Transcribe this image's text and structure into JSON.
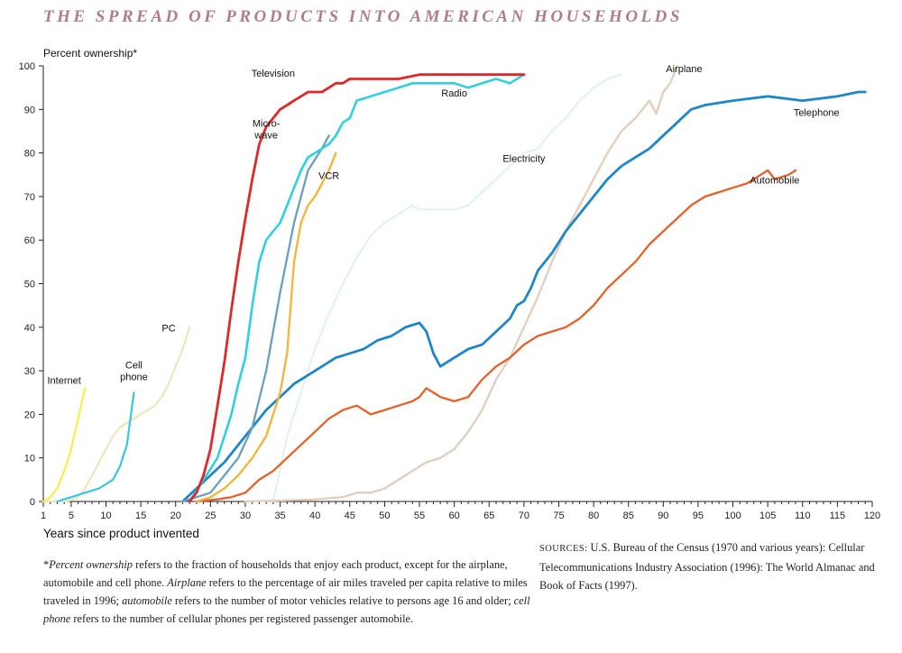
{
  "colors": {
    "title": "#b07c8f",
    "Television": "#e02828",
    "Radio": "#31cfe0",
    "Microwave": "#6a9fbd",
    "VCR": "#f2b535",
    "Electricity": "#dff2f0",
    "Airplane": "#e3cdbd",
    "Telephone": "#1f86c8",
    "Automobile": "#e2622a",
    "PC": "#efe4b8",
    "Internet": "#f8ee3a",
    "Cell phone": "#34c9de"
  },
  "title": "THE SPREAD OF PRODUCTS INTO AMERICAN HOUSEHOLDS",
  "chart_data": {
    "type": "line",
    "ylabel": "Percent ownership*",
    "xlabel": "Years since product invented",
    "xlim": [
      1,
      120
    ],
    "ylim": [
      0,
      100
    ],
    "xticks": [
      1,
      5,
      10,
      15,
      20,
      25,
      30,
      35,
      40,
      45,
      50,
      55,
      60,
      65,
      70,
      75,
      80,
      85,
      90,
      95,
      100,
      105,
      110,
      115,
      120
    ],
    "yticks": [
      0,
      10,
      20,
      30,
      40,
      50,
      60,
      70,
      80,
      90,
      100
    ],
    "grid": false,
    "series": [
      {
        "name": "Electricity",
        "label": "Electricity",
        "label_at": [
          70,
          78
        ],
        "width": 2,
        "x": [
          34,
          36,
          38,
          40,
          42,
          44,
          46,
          48,
          50,
          52,
          54,
          55,
          56,
          58,
          60,
          62,
          64,
          66,
          68,
          70,
          72,
          74,
          76,
          78,
          80,
          82,
          84
        ],
        "y": [
          0,
          15,
          25,
          35,
          43,
          50,
          56,
          61,
          64,
          66,
          68,
          67,
          67,
          67,
          67,
          68,
          71,
          74,
          77,
          80,
          81,
          85,
          88,
          92,
          95,
          97,
          98
        ]
      },
      {
        "name": "Airplane",
        "label": "Airplane",
        "label_at": [
          93,
          98.5
        ],
        "width": 2.3,
        "x": [
          30,
          35,
          40,
          44,
          46,
          48,
          50,
          52,
          54,
          56,
          58,
          60,
          62,
          64,
          66,
          68,
          70,
          72,
          74,
          76,
          78,
          80,
          82,
          84,
          86,
          88,
          89,
          90,
          91,
          92
        ],
        "y": [
          0,
          0.2,
          0.5,
          1,
          2,
          2,
          3,
          5,
          7,
          9,
          10,
          12,
          16,
          21,
          28,
          33,
          40,
          47,
          55,
          62,
          68,
          74,
          80,
          85,
          88,
          92,
          89,
          94,
          96,
          100
        ]
      },
      {
        "name": "Automobile",
        "label": "Automobile",
        "label_at": [
          106,
          73
        ],
        "width": 2.3,
        "x": [
          23,
          26,
          28,
          30,
          32,
          34,
          36,
          38,
          40,
          42,
          44,
          46,
          48,
          50,
          52,
          54,
          55,
          56,
          58,
          60,
          62,
          64,
          66,
          68,
          70,
          72,
          74,
          76,
          78,
          80,
          82,
          84,
          86,
          88,
          90,
          92,
          94,
          96,
          98,
          100,
          102,
          104,
          105,
          106,
          108,
          109
        ],
        "y": [
          0,
          0.5,
          1,
          2,
          5,
          7,
          10,
          13,
          16,
          19,
          21,
          22,
          20,
          21,
          22,
          23,
          24,
          26,
          24,
          23,
          24,
          28,
          31,
          33,
          36,
          38,
          39,
          40,
          42,
          45,
          49,
          52,
          55,
          59,
          62,
          65,
          68,
          70,
          71,
          72,
          73,
          75,
          76,
          74,
          75,
          76
        ]
      },
      {
        "name": "Telephone",
        "label": "Telephone",
        "label_at": [
          112,
          88.5
        ],
        "width": 2.8,
        "x": [
          21,
          23,
          25,
          27,
          29,
          31,
          33,
          35,
          37,
          39,
          41,
          43,
          45,
          47,
          49,
          51,
          53,
          55,
          56,
          57,
          58,
          60,
          62,
          64,
          66,
          68,
          69,
          70,
          71,
          72,
          74,
          76,
          78,
          80,
          82,
          84,
          86,
          88,
          90,
          92,
          94,
          96,
          100,
          105,
          110,
          115,
          118,
          119
        ],
        "y": [
          0,
          3,
          6,
          9,
          13,
          17,
          21,
          24,
          27,
          29,
          31,
          33,
          34,
          35,
          37,
          38,
          40,
          41,
          39,
          34,
          31,
          33,
          35,
          36,
          39,
          42,
          45,
          46,
          49,
          53,
          57,
          62,
          66,
          70,
          74,
          77,
          79,
          81,
          84,
          87,
          90,
          91,
          92,
          93,
          92,
          93,
          94,
          94
        ]
      },
      {
        "name": "PC",
        "label": "PC",
        "label_at": [
          19,
          39
        ],
        "width": 2,
        "x": [
          1,
          2,
          3,
          4,
          5,
          6,
          7,
          8,
          9,
          10,
          11,
          12,
          13,
          14,
          15,
          16,
          17,
          18,
          19,
          20,
          21,
          22
        ],
        "y": [
          0,
          0,
          0,
          0,
          0.3,
          1,
          3,
          6,
          9,
          12,
          15,
          17,
          18,
          19,
          20,
          21,
          22,
          24,
          27,
          31,
          35,
          40
        ]
      },
      {
        "name": "Internet",
        "label": "Internet",
        "label_at": [
          4,
          27
        ],
        "width": 2,
        "x": [
          1,
          2,
          3,
          4,
          5,
          6,
          7
        ],
        "y": [
          0,
          1,
          3,
          7,
          12,
          19,
          26
        ]
      },
      {
        "name": "Cell phone",
        "label": "Cell phone",
        "label_at": [
          14,
          30.5
        ],
        "width": 2.2,
        "x": [
          3,
          5,
          7,
          9,
          11,
          12,
          13,
          14
        ],
        "y": [
          0,
          1,
          2,
          3,
          5,
          8,
          13,
          25
        ]
      },
      {
        "name": "Microwave",
        "label": "Micro-wave",
        "label_at": [
          33,
          86
        ],
        "width": 2.3,
        "x": [
          21,
          23,
          25,
          27,
          29,
          31,
          33,
          35,
          37,
          39,
          41,
          42
        ],
        "y": [
          0,
          1,
          2,
          6,
          10,
          17,
          30,
          48,
          64,
          76,
          81,
          84
        ]
      },
      {
        "name": "VCR",
        "label": "VCR",
        "label_at": [
          42,
          74
        ],
        "width": 2.3,
        "x": [
          23,
          25,
          27,
          29,
          31,
          33,
          35,
          36,
          37,
          38,
          39,
          40,
          41,
          42,
          43
        ],
        "y": [
          0,
          1,
          3,
          6,
          10,
          15,
          25,
          34,
          55,
          64,
          68,
          70,
          73,
          76,
          80
        ]
      },
      {
        "name": "Radio",
        "label": "Radio",
        "label_at": [
          60,
          93
        ],
        "width": 2.6,
        "x": [
          22,
          24,
          26,
          28,
          29,
          30,
          31,
          32,
          33,
          34,
          35,
          36,
          37,
          38,
          39,
          40,
          41,
          42,
          43,
          44,
          45,
          46,
          48,
          50,
          52,
          54,
          56,
          58,
          60,
          62,
          64,
          66,
          68,
          70
        ],
        "y": [
          0,
          5,
          10,
          20,
          27,
          33,
          45,
          55,
          60,
          62,
          64,
          68,
          72,
          76,
          79,
          80,
          81,
          82,
          84,
          87,
          88,
          92,
          93,
          94,
          95,
          96,
          96,
          96,
          96,
          95,
          96,
          97,
          96,
          98
        ]
      },
      {
        "name": "Television",
        "label": "Television",
        "label_at": [
          34,
          97.5
        ],
        "width": 2.8,
        "x": [
          22,
          23,
          24,
          25,
          26,
          27,
          28,
          29,
          30,
          31,
          32,
          33,
          34,
          35,
          36,
          37,
          38,
          39,
          40,
          41,
          42,
          43,
          44,
          45,
          46,
          48,
          50,
          52,
          55,
          60,
          65,
          70
        ],
        "y": [
          0,
          2,
          6,
          12,
          22,
          32,
          44,
          55,
          65,
          74,
          82,
          86,
          88,
          90,
          91,
          92,
          93,
          94,
          94,
          94,
          95,
          96,
          96,
          97,
          97,
          97,
          97,
          97,
          98,
          98,
          98,
          98
        ]
      }
    ]
  },
  "footnote": {
    "asterisk": "*",
    "t1": "Percent ownership",
    "t2": " refers to the fraction of households that enjoy each product, except for the airplane, automobile and cell phone. ",
    "t3": "Airplane",
    "t4": " refers to the percentage of air miles traveled per capita relative to miles traveled in 1996; ",
    "t5": "automobile",
    "t6": " refers to the number of motor vehicles relative to persons age 16 and older; ",
    "t7": "cell phone",
    "t8": " refers to the number of cellular phones per registered passenger automobile."
  },
  "sources": {
    "label": "SOURCES:",
    "text": " U.S. Bureau of the Census (1970 and various years): Cellular Telecommunications Industry Association (1996): The World Almanac and Book of Facts (1997)."
  }
}
